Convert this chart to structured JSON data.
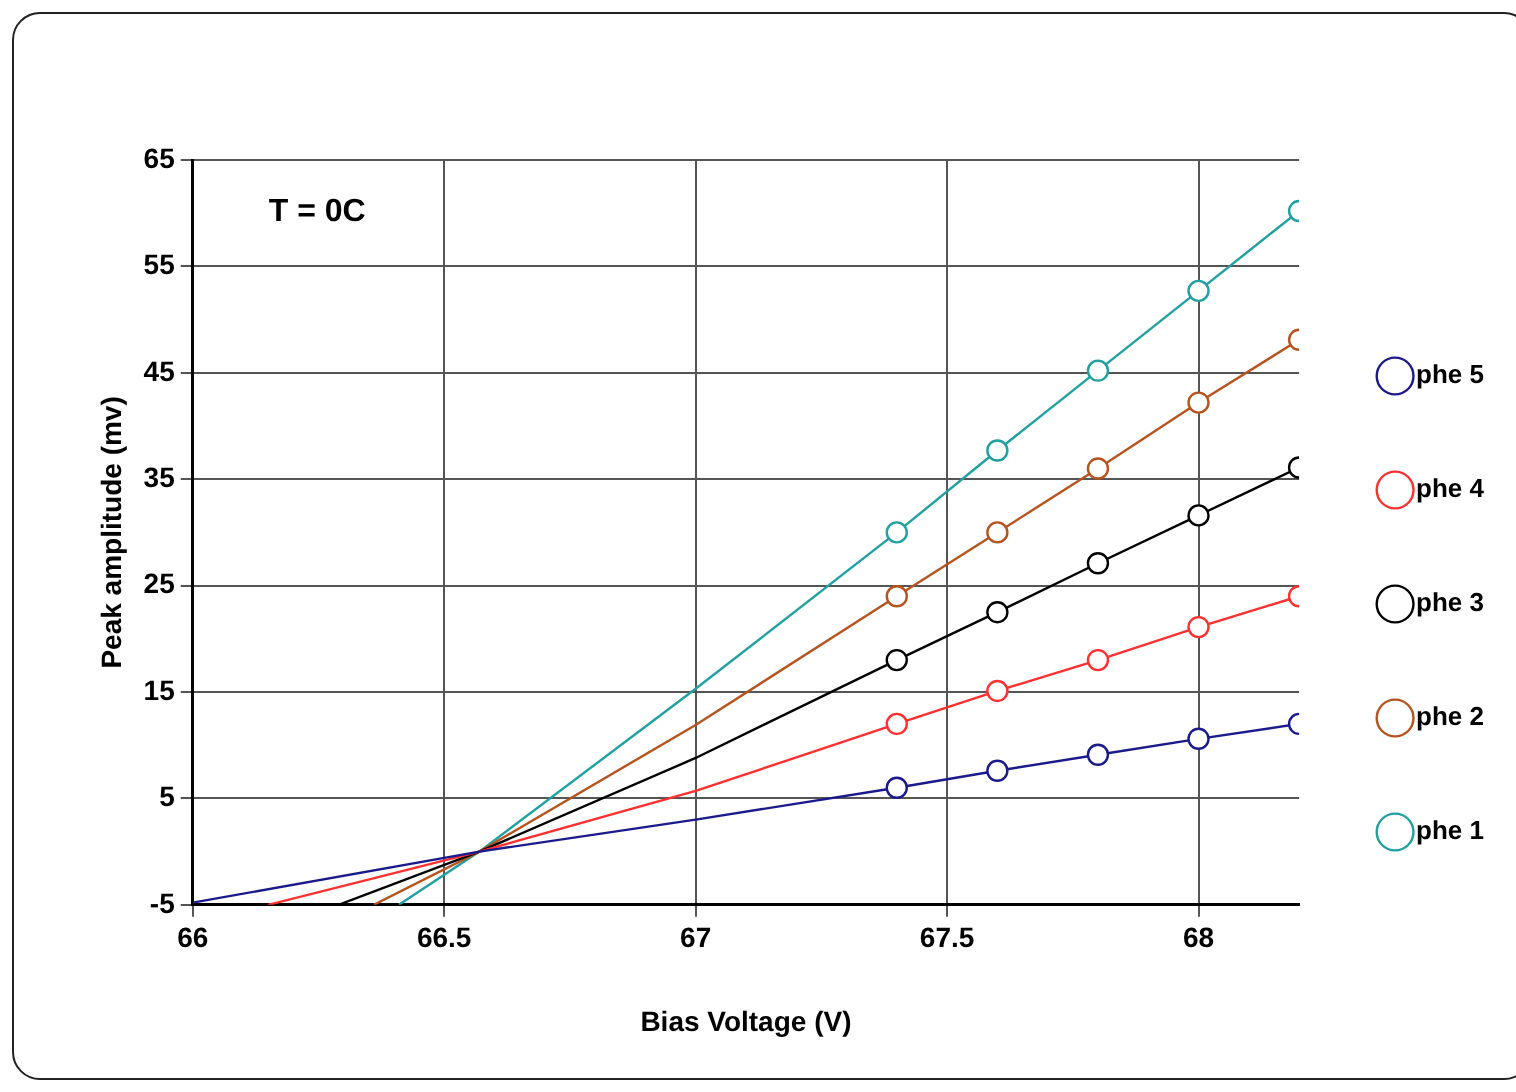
{
  "chart_data": {
    "type": "line",
    "xlabel": "Bias Voltage (V)",
    "ylabel": "Peak amplitude (mv)",
    "annotations": [
      "T = 0C"
    ],
    "xlim": [
      66,
      68.2
    ],
    "xticks": [
      66,
      66.5,
      67,
      67.5,
      68
    ],
    "ylim": [
      -5,
      65
    ],
    "yticks": [
      -5,
      5,
      15,
      25,
      35,
      45,
      55,
      65
    ],
    "grid": true,
    "legend": "right",
    "marker": "circle",
    "line_style": "solid",
    "series": [
      {
        "name": "phe 5",
        "color": "#1a1a8c",
        "x": [
          67.4,
          67.6,
          67.8,
          68,
          68.2
        ],
        "values": [
          6,
          7.6,
          9.1,
          10.6,
          12
        ]
      },
      {
        "name": "phe 4",
        "color": "#ff3030",
        "x": [
          67.4,
          67.6,
          67.8,
          68,
          68.2
        ],
        "values": [
          12,
          15.1,
          18,
          21.1,
          24
        ]
      },
      {
        "name": "phe 3",
        "color": "#000000",
        "x": [
          67.4,
          67.6,
          67.8,
          68,
          68.2
        ],
        "values": [
          18,
          22.5,
          27.1,
          31.6,
          36.1
        ]
      },
      {
        "name": "phe 2",
        "color": "#b5541e",
        "x": [
          67.4,
          67.6,
          67.8,
          68,
          68.2
        ],
        "values": [
          24,
          30,
          36,
          42.2,
          48.1
        ]
      },
      {
        "name": "phe 1",
        "color": "#20a0a0",
        "x": [
          67.4,
          67.6,
          67.8,
          68,
          68.2
        ],
        "values": [
          30,
          37.7,
          45.2,
          52.7,
          60.2
        ]
      },
      {
        "color": "#1a1a8c",
        "marker": "none",
        "x": [
          66,
          66.57,
          67,
          67.4
        ],
        "values": [
          -4.8,
          0,
          3,
          6
        ]
      },
      {
        "color": "#ff3030",
        "marker": "none",
        "x": [
          66.15,
          66.57,
          67,
          67.4
        ],
        "values": [
          -5,
          0,
          5.7,
          12
        ]
      },
      {
        "color": "#000000",
        "marker": "none",
        "x": [
          66.29,
          66.57,
          67,
          67.4
        ],
        "values": [
          -5,
          0,
          8.8,
          18
        ]
      },
      {
        "color": "#b5541e",
        "marker": "none",
        "x": [
          66.36,
          66.57,
          67,
          67.4
        ],
        "values": [
          -5,
          0,
          11.9,
          24
        ]
      },
      {
        "color": "#20a0a0",
        "marker": "none",
        "x": [
          66.41,
          66.57,
          67,
          67.4
        ],
        "values": [
          -5,
          0,
          15.3,
          30
        ]
      }
    ]
  }
}
